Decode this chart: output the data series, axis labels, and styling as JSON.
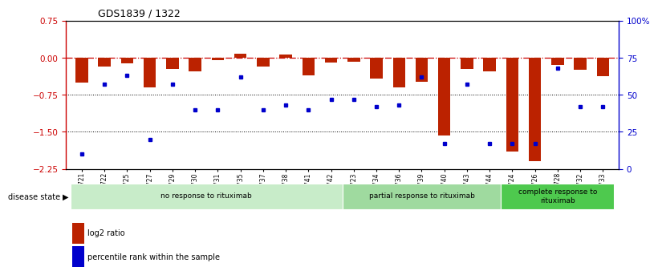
{
  "title": "GDS1839 / 1322",
  "samples": [
    "GSM84721",
    "GSM84722",
    "GSM84725",
    "GSM84727",
    "GSM84729",
    "GSM84730",
    "GSM84731",
    "GSM84735",
    "GSM84737",
    "GSM84738",
    "GSM84741",
    "GSM84742",
    "GSM84723",
    "GSM84734",
    "GSM84736",
    "GSM84739",
    "GSM84740",
    "GSM84743",
    "GSM84744",
    "GSM84724",
    "GSM84726",
    "GSM84728",
    "GSM84732",
    "GSM84733"
  ],
  "log2_ratio": [
    -0.5,
    -0.18,
    -0.12,
    -0.6,
    -0.22,
    -0.28,
    -0.05,
    0.08,
    -0.18,
    0.07,
    -0.35,
    -0.1,
    -0.08,
    -0.42,
    -0.6,
    -0.48,
    -1.58,
    -0.22,
    -0.28,
    -1.9,
    -2.1,
    -0.15,
    -0.25,
    -0.38
  ],
  "percentile_rank": [
    10,
    57,
    63,
    20,
    57,
    40,
    40,
    62,
    40,
    43,
    40,
    47,
    47,
    42,
    43,
    62,
    17,
    57,
    17,
    17,
    17,
    68,
    42,
    42
  ],
  "groups": [
    {
      "label": "no response to rituximab",
      "start": 0,
      "end": 12,
      "color": "#c8ecc9"
    },
    {
      "label": "partial response to rituximab",
      "start": 12,
      "end": 19,
      "color": "#9fda9f"
    },
    {
      "label": "complete response to\nrituximab",
      "start": 19,
      "end": 24,
      "color": "#4ec94e"
    }
  ],
  "ylim_left": [
    -2.25,
    0.75
  ],
  "ylim_right": [
    0,
    100
  ],
  "yticks_left": [
    0.75,
    0,
    -0.75,
    -1.5,
    -2.25
  ],
  "yticks_right": [
    100,
    75,
    50,
    25,
    0
  ],
  "ytick_labels_right": [
    "100%",
    "75",
    "50",
    "25",
    "0"
  ],
  "bar_color": "#bb2200",
  "dot_color": "#0000cc",
  "zero_line_color": "#cc0000",
  "grid_color": "#555555",
  "legend_items": [
    {
      "label": "log2 ratio",
      "color": "#bb2200"
    },
    {
      "label": "percentile rank within the sample",
      "color": "#0000cc"
    }
  ]
}
